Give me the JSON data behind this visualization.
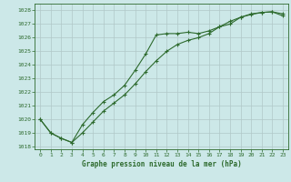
{
  "title": "Graphe pression niveau de la mer (hPa)",
  "bg_color": "#cce8e8",
  "grid_color": "#b0c8c8",
  "line_color": "#2d6a2d",
  "xlim": [
    -0.5,
    23.5
  ],
  "ylim": [
    1017.8,
    1028.5
  ],
  "yticks": [
    1018,
    1019,
    1020,
    1021,
    1022,
    1023,
    1024,
    1025,
    1026,
    1027,
    1028
  ],
  "xticks": [
    0,
    1,
    2,
    3,
    4,
    5,
    6,
    7,
    8,
    9,
    10,
    11,
    12,
    13,
    14,
    15,
    16,
    17,
    18,
    19,
    20,
    21,
    22,
    23
  ],
  "line1_x": [
    0,
    1,
    2,
    3,
    4,
    5,
    6,
    7,
    8,
    9,
    10,
    11,
    12,
    13,
    14,
    15,
    16,
    17,
    18,
    19,
    20,
    21,
    22,
    23
  ],
  "line1_y": [
    1020.0,
    1019.0,
    1018.6,
    1018.3,
    1019.6,
    1020.5,
    1021.3,
    1021.8,
    1022.5,
    1023.6,
    1024.8,
    1026.2,
    1026.3,
    1026.3,
    1026.4,
    1026.3,
    1026.5,
    1026.8,
    1027.0,
    1027.5,
    1027.7,
    1027.85,
    1027.9,
    1027.75
  ],
  "line2_x": [
    0,
    1,
    2,
    3,
    4,
    5,
    6,
    7,
    8,
    9,
    10,
    11,
    12,
    13,
    14,
    15,
    16,
    17,
    18,
    19,
    20,
    21,
    22,
    23
  ],
  "line2_y": [
    1020.0,
    1019.0,
    1018.6,
    1018.3,
    1019.0,
    1019.8,
    1020.6,
    1021.2,
    1021.8,
    1022.6,
    1023.5,
    1024.3,
    1025.0,
    1025.5,
    1025.8,
    1026.0,
    1026.3,
    1026.8,
    1027.2,
    1027.5,
    1027.75,
    1027.85,
    1027.9,
    1027.6
  ]
}
